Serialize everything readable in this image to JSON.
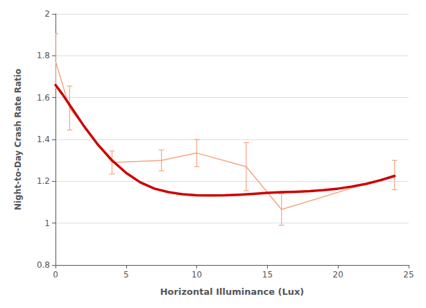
{
  "chart_data": {
    "type": "line",
    "xlabel": "Horizontal Illuminance (Lux)",
    "ylabel": "Night-to-Day Crash Rate Ratio",
    "xlim": [
      0,
      25
    ],
    "ylim": [
      0.8,
      2.0
    ],
    "xticks": [
      0,
      5,
      10,
      15,
      20,
      25
    ],
    "yticks": [
      0.8,
      1,
      1.2,
      1.4,
      1.6,
      1.8,
      2
    ],
    "grid": true,
    "series": [
      {
        "color": "#F4A582",
        "x": [
          0,
          1,
          4,
          7.5,
          10,
          13.5,
          16,
          24
        ],
        "values": [
          1.775,
          1.55,
          1.29,
          1.3,
          1.335,
          1.27,
          1.065,
          1.23
        ],
        "errors": [
          0.13,
          0.105,
          0.055,
          0.05,
          0.065,
          0.115,
          0.075,
          0.07
        ]
      },
      {
        "color": "#CC0000",
        "x": [
          0,
          0.5,
          1,
          1.5,
          2,
          3,
          4,
          5,
          6,
          7,
          8,
          9,
          10,
          11,
          12,
          13,
          14,
          15,
          16,
          17,
          18,
          19,
          20,
          21,
          22,
          23,
          24
        ],
        "values": [
          1.66,
          1.615,
          1.565,
          1.515,
          1.465,
          1.375,
          1.3,
          1.24,
          1.195,
          1.165,
          1.148,
          1.138,
          1.133,
          1.132,
          1.133,
          1.136,
          1.14,
          1.145,
          1.148,
          1.15,
          1.153,
          1.158,
          1.165,
          1.175,
          1.188,
          1.205,
          1.225
        ]
      }
    ]
  }
}
